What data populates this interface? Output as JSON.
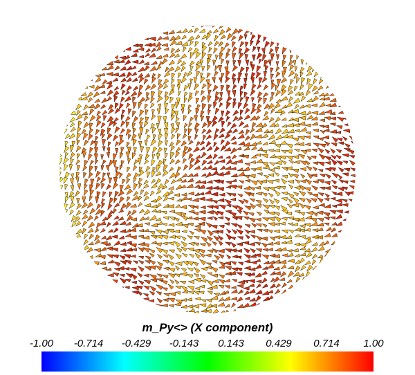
{
  "figure": {
    "description_visible": "3D vector glyph field on a disc colored by scalar",
    "colorbar": {
      "title": "m_Py<> (X component)",
      "ticks": [
        "-1.00",
        "-0.714",
        "-0.429",
        "-0.143",
        "0.143",
        "0.429",
        "0.714",
        "1.00"
      ],
      "range": [
        -1.0,
        1.0
      ],
      "colormap": [
        "#0000ff",
        "#00ffff",
        "#00ff00",
        "#ffff00",
        "#ff0000"
      ]
    }
  },
  "colors": {
    "background": "#ffffff",
    "glyph_outline": "#1a1a1a"
  }
}
